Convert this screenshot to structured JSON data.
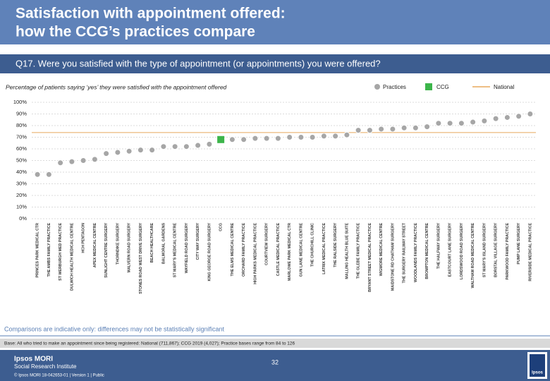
{
  "header": {
    "title_lines": [
      "Satisfaction with appointment offered:",
      "how the CCG’s practices compare"
    ]
  },
  "chart_data": {
    "type": "dot",
    "title": "Q17. Were you satisfied with the type of appointment (or appointments) you were offered?",
    "subtitle": "Percentage of patients saying ‘yes’ they were satisfied with the appointment offered",
    "categories": [
      "PRINCES PARK MEDICAL CTR",
      "THE AMBS FAMILY PRACTICE",
      "ST WERBURGH MED PRACTICE",
      "DULWICH HEALTH MEDICAL CENTRE",
      "HCH PENTAGON",
      "APEX MEDICAL CENTRE",
      "SUNLIGHT CENTRE SURGERY",
      "THORNDIKE SURGERY",
      "MALVERN ROAD SURGERY",
      "STONES ROAD WEST DRIVE SURGERY",
      "BEACH HEALTHCARE",
      "BALMORAL GARDENS",
      "ST MARY'S MEDICAL CENTRE",
      "WAYFIELD ROAD SURGERY",
      "CITY WAY SURGERY",
      "KING GEORGE ROAD SURGERY",
      "CCG",
      "THE ELMS MEDICAL CENTRE",
      "ORCHARD FAMILY PRACTICE",
      "HIGH PARKS MEDICAL PRACTICE",
      "COURTVIEW SURGERY",
      "CASTLE MEDICAL PRACTICE",
      "MARLOWE PARK MEDICAL CTR",
      "GUN LANE MEDICAL CENTRE",
      "THE CHURCHILL CLINIC",
      "LATRIX MEDICAL PRACTICE",
      "THE RALSIDE SURGERY",
      "MALLING HEALTH BLUE SUITE",
      "THE GLEBE FAMILY PRACTICE",
      "BRYANT STREET MEDICAL PRACTICE",
      "WIGMORE MEDICAL CENTRE",
      "MAIDSTONE RD CHATHAM SURGERY",
      "THE SURGERY RAILWAY STREET",
      "WOODLANDS FAMILY PRACTICE",
      "BROMPTON MEDICAL CENTRE",
      "THE HALFWAY SURGERY",
      "EASTCOURT LANE SURGERY",
      "LORDSWOOD ROAD SURGERY",
      "WALTHAM ROAD MEDICAL CENTRE",
      "ST MARY'S ISLAND SURGERY",
      "BORSTAL VILLAGE SURGERY",
      "PARKWOOD FAMILY PRACTICE",
      "PUMP LANE SURGERY",
      "RIVERSIDE MEDICAL PRACTICE"
    ],
    "series": [
      {
        "name": "Practices",
        "color": "#a6a6a6",
        "values": [
          38,
          38,
          48,
          49,
          50,
          51,
          56,
          57,
          58,
          59,
          59,
          62,
          62,
          62,
          63,
          64,
          null,
          68,
          68,
          69,
          69,
          69,
          70,
          70,
          70,
          71,
          71,
          72,
          76,
          76,
          77,
          77,
          78,
          78,
          79,
          82,
          82,
          82,
          83,
          84,
          86,
          87,
          88,
          90
        ]
      },
      {
        "name": "CCG",
        "color": "#3cb54a",
        "values": [
          null,
          null,
          null,
          null,
          null,
          null,
          null,
          null,
          null,
          null,
          null,
          null,
          null,
          null,
          null,
          null,
          68,
          null,
          null,
          null,
          null,
          null,
          null,
          null,
          null,
          null,
          null,
          null,
          null,
          null,
          null,
          null,
          null,
          null,
          null,
          null,
          null,
          null,
          null,
          null,
          null,
          null,
          null,
          null
        ]
      }
    ],
    "reference": {
      "name": "National",
      "value": 74,
      "color": "#e8a85c"
    },
    "ylim": [
      0,
      100
    ],
    "yticks": [
      {
        "value": 0,
        "label": "0%"
      },
      {
        "value": 10,
        "label": "10%"
      },
      {
        "value": 20,
        "label": "20%"
      },
      {
        "value": 30,
        "label": "30%"
      },
      {
        "value": 40,
        "label": "40%"
      },
      {
        "value": 50,
        "label": "50%"
      },
      {
        "value": 60,
        "label": "60%"
      },
      {
        "value": 70,
        "label": "70%"
      },
      {
        "value": 80,
        "label": "80%"
      },
      {
        "value": 90,
        "label": "90%"
      },
      {
        "value": 100,
        "label": "100%"
      }
    ],
    "grid": true
  },
  "footer": {
    "note": "Comparisons are indicative only: differences may not be statistically significant",
    "base": "Base: All who tried to make an appointment since being registered: National (711,867); CCG 2019 (4,027); Practice bases range from 84 to 126",
    "brand": "Ipsos MORI",
    "brand_sub": "Social Research Institute",
    "copyright": "© Ipsos MORI     18-042653-01 | Version 1 | Public",
    "page": "32",
    "logo": "Ipsos"
  }
}
